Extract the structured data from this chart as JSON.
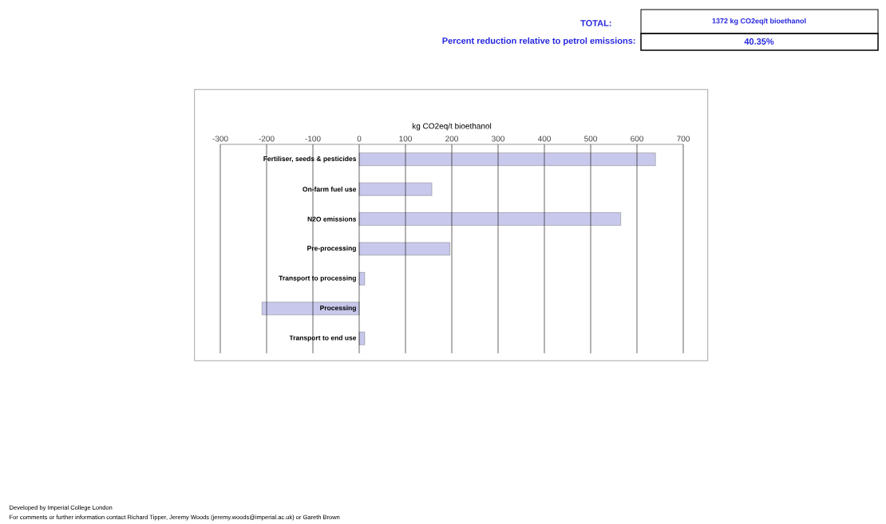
{
  "chart_data": {
    "type": "bar",
    "orientation": "horizontal",
    "xlabel": "kg CO2eq/t bioethanol",
    "categories": [
      "Fertiliser, seeds & pesticides",
      "On-farm fuel use",
      "N2O emissions",
      "Pre-processing",
      "Transport to processing",
      "Processing",
      "Transport to end use"
    ],
    "values": [
      640,
      157,
      565,
      196,
      12,
      -210,
      12
    ],
    "color": "#c8c8ec",
    "xlim": [
      -300,
      700
    ],
    "xticks": [
      -300,
      -200,
      -100,
      0,
      100,
      200,
      300,
      400,
      500,
      600,
      700
    ],
    "grid": "x",
    "annotations": [
      "TOTAL:",
      "1372 kg CO2eq/t bioethanol",
      "Percent reduction relative to petrol emissions:",
      "40.35%",
      "Developed by Imperial College London",
      "For comments or further information contact Richard Tipper, Jeremy Woods (jeremy.woods@imperial.ac.uk) or Gareth Brown"
    ]
  }
}
